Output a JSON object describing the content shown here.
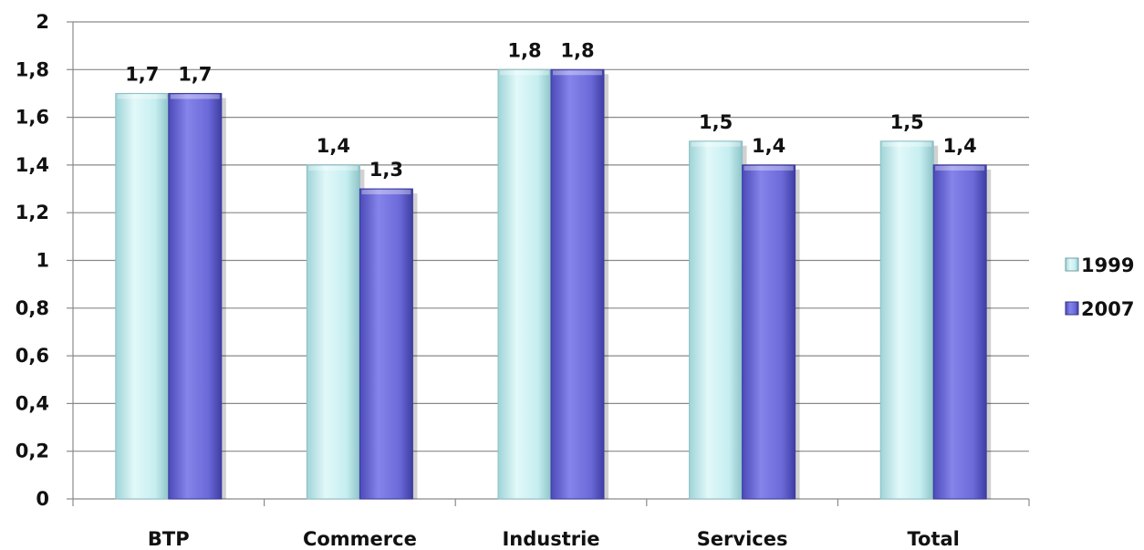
{
  "chart_data": {
    "type": "bar",
    "categories": [
      "BTP",
      "Commerce",
      "Industrie",
      "Services",
      "Total"
    ],
    "series": [
      {
        "name": "1999",
        "values": [
          1.7,
          1.4,
          1.8,
          1.5,
          1.5
        ],
        "labels": [
          "1,7",
          "1,4",
          "1,8",
          "1,5",
          "1,5"
        ]
      },
      {
        "name": "2007",
        "values": [
          1.7,
          1.3,
          1.8,
          1.4,
          1.4
        ],
        "labels": [
          "1,7",
          "1,3",
          "1,8",
          "1,4",
          "1,4"
        ]
      }
    ],
    "ylim": [
      0,
      2
    ],
    "yticks": [
      0,
      0.2,
      0.4,
      0.6,
      0.8,
      1,
      1.2,
      1.4,
      1.6,
      1.8,
      2
    ],
    "ytick_labels": [
      "0",
      "0,2",
      "0,4",
      "0,6",
      "0,8",
      "1",
      "1,2",
      "1,4",
      "1,6",
      "1,8",
      "2"
    ],
    "grid": true,
    "legend_position": "right",
    "colors": {
      "1999": "#c6eef0",
      "2007": "#6b6ad9",
      "grid": "#8a8a8a"
    }
  }
}
